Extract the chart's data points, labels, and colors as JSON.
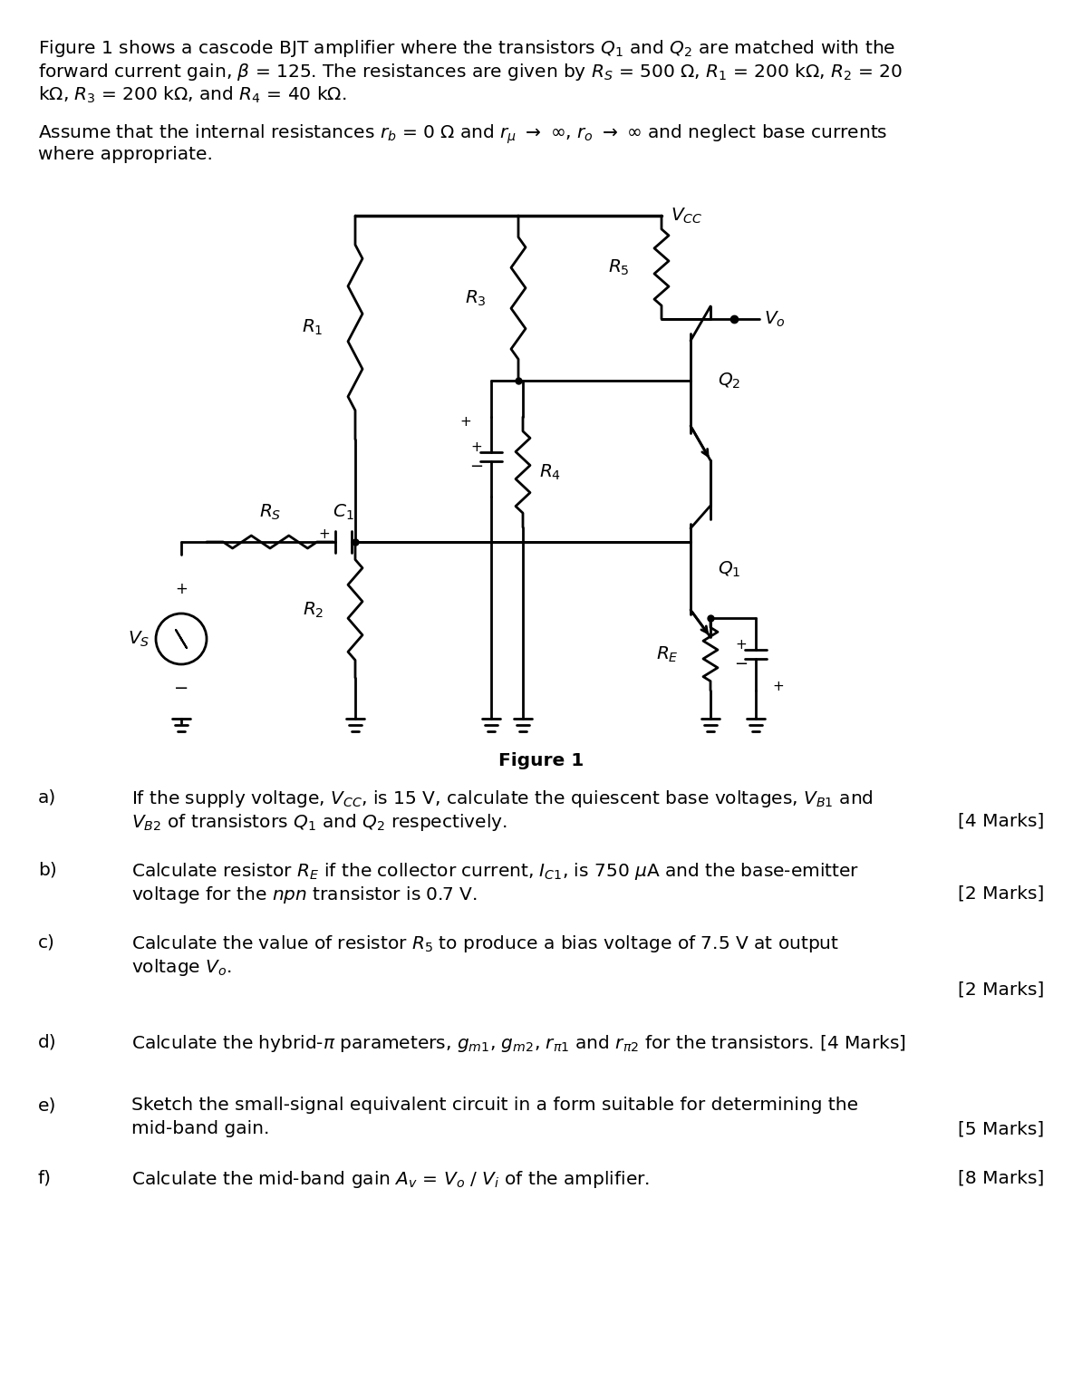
{
  "title_text": "Figure 1",
  "paragraph1": "Figure 1 shows a cascode BJT amplifier where the transistors Q₁ and Q₂ are matched with the\nforward current gain, β = 125. The resistances are given by Rₛ = 500 Ω, R₁ = 200 kΩ, R₂ = 20\nkΩ, R₃ = 200 kΩ, and R₄ = 40 kΩ.",
  "paragraph2": "Assume that the internal resistances rᵇ = 0 Ω and rμ □ ∞, rₒ □ ∞ and neglect base currents\nwhere appropriate.",
  "qa": "a)",
  "qa_text": "If the supply voltage, Vᴄᴄ, is 15 V, calculate the quiescent base voltages, Vв₁ and\nVв₂ of transistors Q₁ and Q₂ respectively.",
  "qa_marks": "[4 Marks]",
  "qb": "b)",
  "qb_text": "Calculate resistor Rᴇ if the collector current, Iᴄ₁, is 750 μA and the base-emitter\nvoltage for the npn transistor is 0.7 V.",
  "qb_marks": "[2 Marks]",
  "qc": "c)",
  "qc_text": "Calculate the value of resistor Rₛ to produce a bias voltage of 7.5 V at output\nvoltage Vₒ.",
  "qc_marks": "[2 Marks]",
  "qd": "d)",
  "qd_text": "Calculate the hybrid-π parameters, gₘ₁, gₘ₂, rπ₁ and rπ₂ for the transistors. [4 Marks]",
  "qe": "e)",
  "qe_text": "Sketch the small-signal equivalent circuit in a form suitable for determining the\nmid-band gain.",
  "qe_marks": "[5 Marks]",
  "qf": "f)",
  "qf_text": "Calculate the mid-band gain Aᵥ = Vₒ / Vᵢ of the amplifier.",
  "qf_marks": "[8 Marks]",
  "bg_color": "#ffffff",
  "text_color": "#000000",
  "font_size_body": 13.5,
  "font_size_label": 11
}
